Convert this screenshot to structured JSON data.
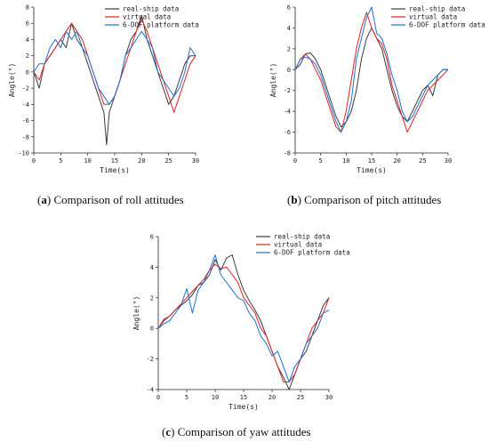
{
  "colors": {
    "real": "#3a3a3a",
    "virtual": "#e02020",
    "platform": "#1f6fd6"
  },
  "captions": [
    {
      "letter": "a",
      "text": " Comparison of roll attitudes"
    },
    {
      "letter": "b",
      "text": " Comparison of pitch attitudes"
    },
    {
      "letter": "c",
      "text": " Comparison of yaw attitudes"
    }
  ],
  "chart_data": [
    {
      "type": "line",
      "xlabel": "Time(s)",
      "ylabel": "Angle(°)",
      "xlim": [
        0,
        30
      ],
      "ylim": [
        -10,
        8
      ],
      "xticks": [
        0,
        5,
        10,
        15,
        20,
        25,
        30
      ],
      "yticks": [
        -10,
        -8,
        -6,
        -4,
        -2,
        0,
        2,
        4,
        6,
        8
      ],
      "legend": "top-right",
      "series": [
        {
          "name": "real-ship data",
          "x": [
            0,
            1,
            2,
            3,
            4,
            5,
            6,
            7,
            8,
            9,
            10,
            11,
            12,
            13,
            13.5,
            14,
            15,
            16,
            17,
            18,
            19,
            20,
            21,
            22,
            23,
            24,
            25,
            26,
            27,
            28,
            29,
            30
          ],
          "values": [
            0,
            -2,
            1,
            2,
            3,
            4,
            3,
            6,
            4,
            3,
            1,
            -1,
            -3,
            -5,
            -9,
            -5,
            -3,
            -1,
            2,
            4,
            5,
            7,
            4,
            2,
            0,
            -2,
            -4,
            -3,
            -1,
            1,
            2,
            2
          ]
        },
        {
          "name": "virtual data",
          "x": [
            0,
            1,
            2,
            3,
            4,
            5,
            6,
            7,
            8,
            9,
            10,
            11,
            12,
            13,
            14,
            15,
            16,
            17,
            18,
            19,
            20,
            21,
            22,
            23,
            24,
            25,
            26,
            27,
            28,
            29,
            30
          ],
          "values": [
            0,
            -1,
            1,
            2,
            3,
            4,
            5,
            6,
            5,
            4,
            2,
            0,
            -2,
            -4,
            -4,
            -3,
            -1,
            1,
            3,
            5,
            6.5,
            5,
            3,
            1,
            -1,
            -3,
            -5,
            -3,
            -1,
            1,
            2
          ]
        },
        {
          "name": "6-DOF platform data",
          "x": [
            0,
            1,
            2,
            3,
            4,
            5,
            6,
            7,
            8,
            9,
            10,
            11,
            12,
            13,
            14,
            15,
            16,
            17,
            18,
            19,
            20,
            21,
            22,
            23,
            24,
            25,
            26,
            27,
            28,
            29,
            30
          ],
          "values": [
            0,
            1,
            1,
            3,
            4,
            3,
            5,
            4,
            5,
            3,
            2,
            0,
            -2,
            -3,
            -4,
            -3,
            -1,
            2,
            3,
            4,
            5,
            4,
            3,
            0,
            -1,
            -2,
            -3,
            -2,
            0,
            3,
            2
          ]
        }
      ]
    },
    {
      "type": "line",
      "xlabel": "Time(s)",
      "ylabel": "Angle(°)",
      "xlim": [
        0,
        30
      ],
      "ylim": [
        -8,
        6
      ],
      "xticks": [
        0,
        5,
        10,
        15,
        20,
        25,
        30
      ],
      "yticks": [
        -8,
        -6,
        -4,
        -2,
        0,
        2,
        4,
        6
      ],
      "legend": "top-right",
      "series": [
        {
          "name": "real-ship data",
          "x": [
            0,
            1,
            2,
            3,
            4,
            5,
            6,
            7,
            8,
            9,
            10,
            11,
            12,
            13,
            14,
            15,
            16,
            17,
            18,
            19,
            20,
            21,
            22,
            23,
            24,
            25,
            26,
            27,
            28,
            29,
            30
          ],
          "values": [
            0,
            0.5,
            1.5,
            1.6,
            1,
            0,
            -1.5,
            -3,
            -4.5,
            -5.5,
            -5,
            -4,
            -2,
            1,
            3,
            4,
            3,
            2,
            0,
            -2,
            -3.5,
            -4.5,
            -5,
            -4,
            -3,
            -2,
            -1.5,
            -2.5,
            -0.5,
            0,
            0
          ]
        },
        {
          "name": "virtual data",
          "x": [
            0,
            1,
            2,
            3,
            4,
            5,
            6,
            7,
            8,
            9,
            10,
            11,
            12,
            13,
            14,
            15,
            16,
            17,
            18,
            19,
            20,
            21,
            22,
            23,
            24,
            25,
            26,
            27,
            28,
            29,
            30
          ],
          "values": [
            0,
            1,
            1.5,
            1,
            0,
            -1,
            -2.5,
            -4,
            -5.5,
            -6,
            -4,
            -1,
            2,
            4,
            5.5,
            4,
            3,
            2.5,
            1,
            -1.5,
            -3,
            -4.5,
            -6,
            -5,
            -4,
            -3,
            -2,
            -1.5,
            -1,
            -0.5,
            0
          ]
        },
        {
          "name": "6-DOF platform data",
          "x": [
            0,
            1,
            2,
            3,
            4,
            5,
            6,
            7,
            8,
            9,
            10,
            11,
            12,
            13,
            14,
            15,
            16,
            17,
            18,
            19,
            20,
            21,
            22,
            23,
            24,
            25,
            26,
            27,
            28,
            29,
            30
          ],
          "values": [
            0,
            1,
            1.2,
            1,
            0.5,
            -0.5,
            -2,
            -3.5,
            -5,
            -6,
            -5,
            -3,
            1,
            3,
            5,
            6,
            3.5,
            3,
            1.5,
            -0.5,
            -2,
            -4,
            -5,
            -4.5,
            -3.5,
            -2.5,
            -1.5,
            -1,
            -0.5,
            0,
            0
          ]
        }
      ]
    },
    {
      "type": "line",
      "xlabel": "Time(s)",
      "ylabel": "Angle(°)",
      "xlim": [
        0,
        30
      ],
      "ylim": [
        -4,
        6
      ],
      "xticks": [
        0,
        5,
        10,
        15,
        20,
        25,
        30
      ],
      "yticks": [
        -4,
        -2,
        0,
        2,
        4,
        6
      ],
      "legend": "top-right",
      "series": [
        {
          "name": "real-ship data",
          "x": [
            0,
            1,
            2,
            3,
            4,
            5,
            6,
            7,
            8,
            9,
            10,
            11,
            12,
            13,
            14,
            15,
            16,
            17,
            18,
            19,
            20,
            21,
            22,
            23,
            24,
            25,
            26,
            27,
            28,
            29,
            30
          ],
          "values": [
            0,
            0.5,
            0.8,
            1.2,
            1.5,
            1.8,
            2.2,
            2.8,
            3,
            3.5,
            4.5,
            3.8,
            4.6,
            4.8,
            3.5,
            2.5,
            1.8,
            1.2,
            0.5,
            -0.5,
            -1.5,
            -2.5,
            -3.2,
            -4,
            -3,
            -2,
            -1.5,
            -0.5,
            0.5,
            1.5,
            2
          ]
        },
        {
          "name": "virtual data",
          "x": [
            0,
            1,
            2,
            3,
            4,
            5,
            6,
            7,
            8,
            9,
            10,
            11,
            12,
            13,
            14,
            15,
            16,
            17,
            18,
            19,
            20,
            21,
            22,
            23,
            24,
            25,
            26,
            27,
            28,
            29,
            30
          ],
          "values": [
            0,
            0.6,
            0.8,
            1.2,
            1.6,
            2,
            2.4,
            2.8,
            3.2,
            3.8,
            4.2,
            3.9,
            4,
            3.5,
            3,
            2,
            1.5,
            1,
            0,
            -0.5,
            -1.5,
            -2.5,
            -3.5,
            -3.5,
            -3,
            -2,
            -1,
            0,
            0.5,
            1,
            2
          ]
        },
        {
          "name": "6-DOF platform data",
          "x": [
            0,
            1,
            2,
            3,
            4,
            5,
            6,
            7,
            8,
            9,
            10,
            11,
            12,
            13,
            14,
            15,
            16,
            17,
            18,
            19,
            20,
            21,
            22,
            23,
            24,
            25,
            26,
            27,
            28,
            29,
            30
          ],
          "values": [
            0,
            0.3,
            0.5,
            1,
            1.5,
            2.6,
            1,
            2.5,
            3,
            3.8,
            4.8,
            3.5,
            3,
            2.5,
            2,
            1.8,
            1,
            0.5,
            -0.5,
            -1,
            -1.8,
            -1.5,
            -2.5,
            -3.5,
            -2.5,
            -2,
            -1,
            -0.5,
            0,
            1,
            1.2
          ]
        }
      ]
    }
  ]
}
